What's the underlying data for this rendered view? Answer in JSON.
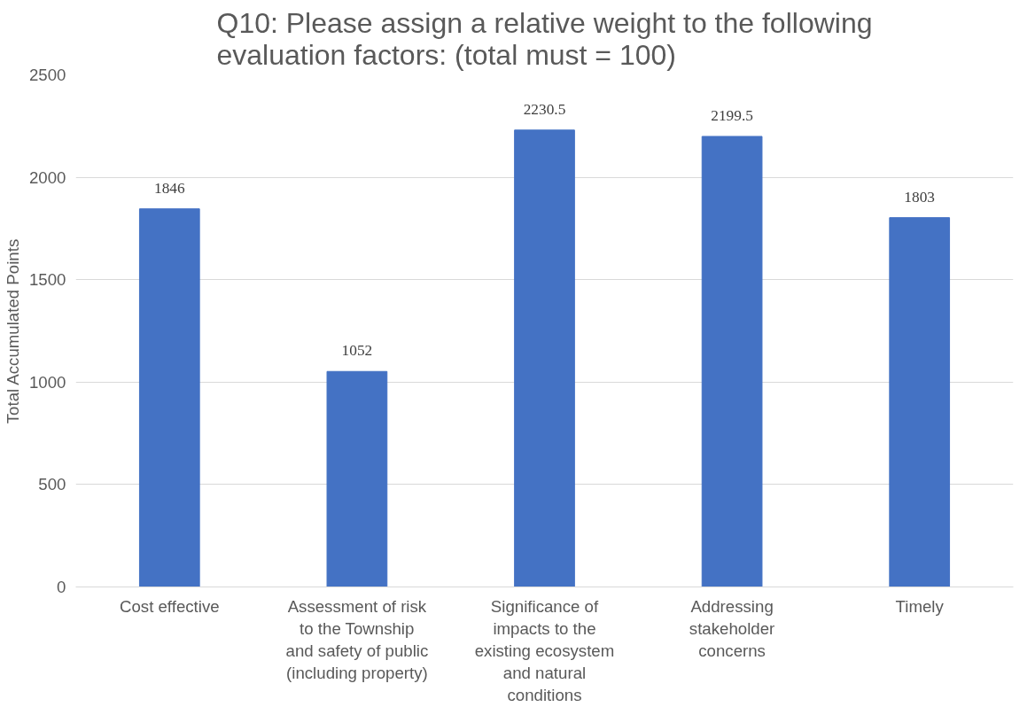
{
  "chart_data": {
    "type": "bar",
    "title": "Q10: Please assign a relative weight to the following\nevaluation factors: (total must = 100)",
    "ylabel": "Total Accumulated Points",
    "categories": [
      "Cost effective",
      "Assessment of risk\nto the Township\nand safety of public\n(including property)",
      "Significance of\nimpacts to the\nexisting ecosystem\nand natural\nconditions",
      "Addressing\nstakeholder\nconcerns",
      "Timely"
    ],
    "values": [
      1846,
      1052,
      2230.5,
      2199.5,
      1803
    ],
    "color": "#4472c4",
    "ylim": [
      0,
      2500
    ],
    "yticks": [
      0,
      500,
      1000,
      1500,
      2000,
      2500
    ],
    "grid": "y",
    "data_labels": true
  }
}
